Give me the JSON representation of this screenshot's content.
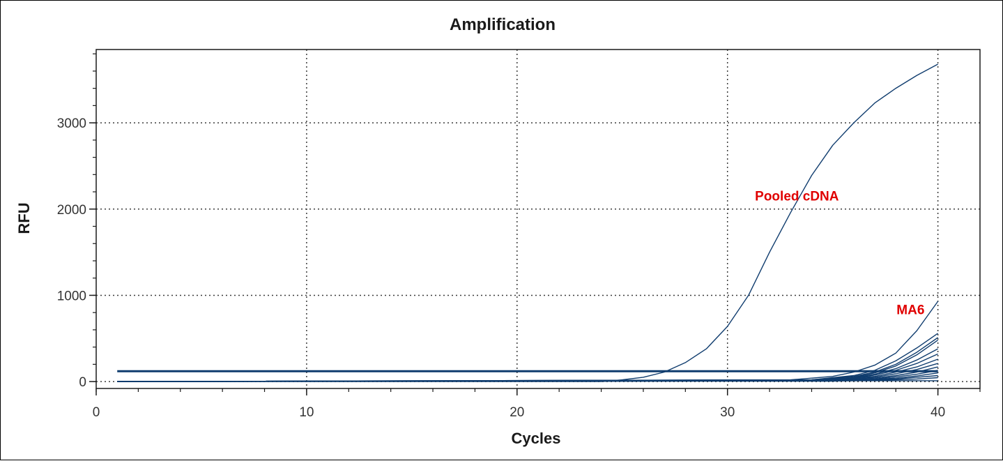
{
  "chart_data": {
    "type": "line",
    "title": "Amplification",
    "xlabel": "Cycles",
    "ylabel": "RFU",
    "xlim": [
      0,
      42
    ],
    "ylim": [
      -80,
      3850
    ],
    "xticks": [
      0,
      10,
      20,
      30,
      40
    ],
    "yticks": [
      0,
      1000,
      2000,
      3000
    ],
    "grid": "dotted",
    "line_color": "#0f3c6e",
    "annotation_color": "#e00000",
    "annotations": [
      {
        "text": "Pooled cDNA",
        "x": 33.3,
        "y": 2100
      },
      {
        "text": "MA6",
        "x": 38.7,
        "y": 780
      }
    ],
    "series": [
      {
        "x": [
          1,
          24,
          25,
          26,
          27,
          28,
          29,
          30,
          31,
          32,
          33,
          34,
          35,
          36,
          37,
          38,
          39,
          40
        ],
        "values": [
          0,
          0,
          20,
          50,
          110,
          220,
          380,
          640,
          1000,
          1500,
          1960,
          2390,
          2740,
          3000,
          3230,
          3400,
          3550,
          3680
        ]
      },
      {
        "x": [
          1,
          40
        ],
        "values": [
          120,
          120
        ]
      },
      {
        "x": [
          1,
          33,
          35,
          36,
          37,
          38,
          39,
          40
        ],
        "values": [
          0,
          20,
          60,
          110,
          190,
          330,
          590,
          930
        ]
      },
      {
        "x": [
          1,
          34,
          36,
          37,
          38,
          39,
          40
        ],
        "values": [
          0,
          20,
          70,
          130,
          240,
          390,
          560
        ]
      },
      {
        "x": [
          1,
          34,
          36,
          37,
          38,
          39,
          40
        ],
        "values": [
          0,
          20,
          60,
          110,
          200,
          340,
          510
        ]
      },
      {
        "x": [
          1,
          34,
          36,
          37,
          38,
          39,
          40
        ],
        "values": [
          0,
          15,
          50,
          100,
          180,
          310,
          480
        ]
      },
      {
        "x": [
          1,
          34,
          36,
          37,
          38,
          39,
          40
        ],
        "values": [
          0,
          15,
          45,
          85,
          150,
          250,
          380
        ]
      },
      {
        "x": [
          1,
          34,
          36,
          37,
          38,
          39,
          40
        ],
        "values": [
          0,
          10,
          40,
          75,
          130,
          210,
          320
        ]
      },
      {
        "x": [
          1,
          35,
          37,
          38,
          39,
          40
        ],
        "values": [
          0,
          20,
          60,
          110,
          170,
          260
        ]
      },
      {
        "x": [
          1,
          35,
          37,
          38,
          39,
          40
        ],
        "values": [
          0,
          15,
          50,
          90,
          140,
          210
        ]
      },
      {
        "x": [
          1,
          35,
          37,
          38,
          39,
          40
        ],
        "values": [
          0,
          15,
          40,
          70,
          110,
          170
        ]
      },
      {
        "x": [
          1,
          35,
          37,
          38,
          39,
          40
        ],
        "values": [
          0,
          10,
          30,
          55,
          85,
          130
        ]
      },
      {
        "x": [
          1,
          35,
          37,
          38,
          39,
          40
        ],
        "values": [
          0,
          10,
          25,
          40,
          65,
          100
        ]
      },
      {
        "x": [
          1,
          35,
          37,
          38,
          39,
          40
        ],
        "values": [
          0,
          5,
          20,
          30,
          50,
          70
        ]
      },
      {
        "x": [
          1,
          36,
          38,
          39,
          40
        ],
        "values": [
          0,
          10,
          20,
          30,
          45
        ]
      },
      {
        "x": [
          1,
          40
        ],
        "values": [
          0,
          10
        ]
      }
    ]
  }
}
